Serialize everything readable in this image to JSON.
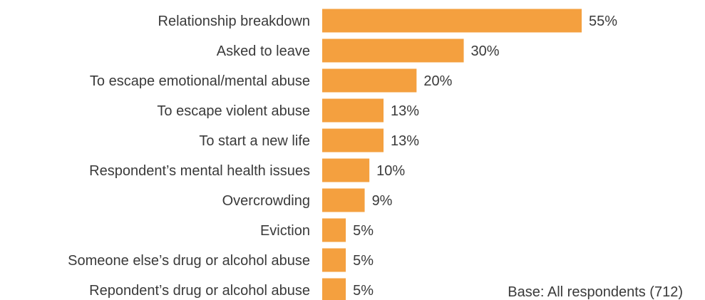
{
  "chart_data": {
    "type": "bar",
    "orientation": "horizontal",
    "categories": [
      "Relationship breakdown",
      "Asked to leave",
      "To escape emotional/mental abuse",
      "To escape violent abuse",
      "To start a new life",
      "Respondent’s mental health issues",
      "Overcrowding",
      "Eviction",
      "Someone else’s drug or alcohol abuse",
      "Repondent’s drug or alcohol abuse"
    ],
    "values": [
      55,
      30,
      20,
      13,
      13,
      10,
      9,
      5,
      5,
      5
    ],
    "value_labels": [
      "55%",
      "30%",
      "20%",
      "13%",
      "13%",
      "10%",
      "9%",
      "5%",
      "5%",
      "5%"
    ],
    "unit": "%",
    "xlim": [
      0,
      55
    ],
    "grid": false,
    "legend": "none",
    "bar_color": "#f4a03f",
    "text_color": "#3a3a3a",
    "note": "Base: All respondents (712)"
  }
}
